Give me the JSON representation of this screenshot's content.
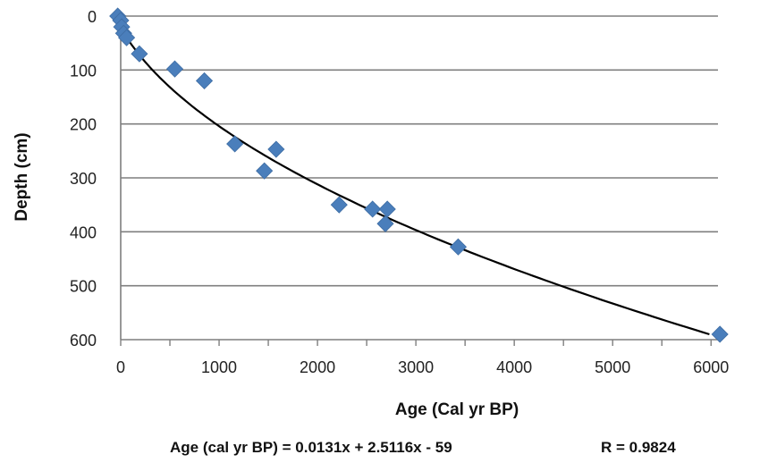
{
  "chart_data": {
    "type": "scatter",
    "xlabel": "Age (Cal yr BP)",
    "ylabel": "Depth (cm)",
    "xlim": [
      0,
      6000
    ],
    "ylim": [
      0,
      600
    ],
    "y_inverted": true,
    "grid": "horizontal",
    "x_ticks": [
      "0",
      "1000",
      "2000",
      "3000",
      "4000",
      "5000",
      "6000"
    ],
    "y_ticks": [
      "0",
      "100",
      "200",
      "300",
      "400",
      "500",
      "600"
    ],
    "marker_color": "#4a7ebb",
    "trendline_color": "#000000",
    "series": [
      {
        "x": [
          -30,
          0,
          10,
          30,
          60,
          190,
          550,
          850,
          1160,
          1460,
          1580,
          2220,
          2560,
          2710,
          2690,
          3430,
          6090
        ],
        "y": [
          0,
          8,
          20,
          32,
          40,
          70,
          98,
          120,
          237,
          287,
          247,
          350,
          358,
          358,
          385,
          428,
          590
        ]
      }
    ],
    "trendline": {
      "a": 0.0131,
      "b": 2.5116,
      "c": -59
    },
    "annotation": {
      "equation": "Age (cal yr BP) = 0.0131x  + 2.5116x - 59",
      "r_value": "R  = 0.9824"
    }
  }
}
